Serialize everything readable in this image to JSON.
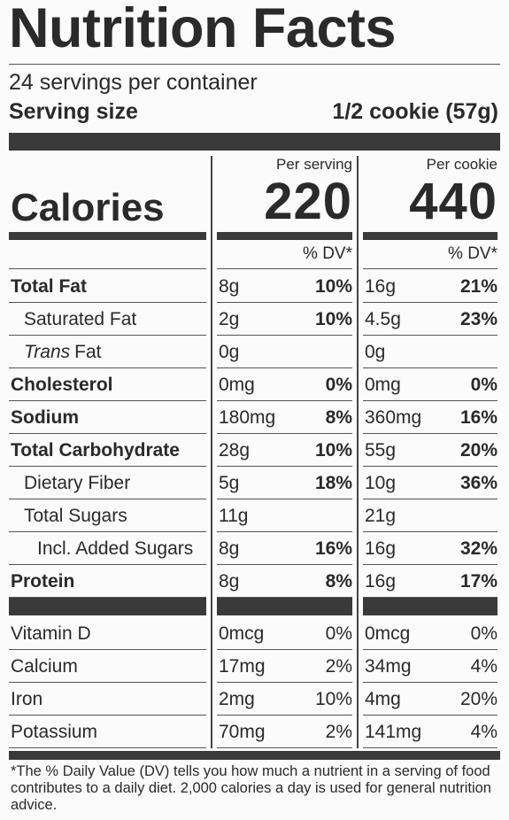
{
  "title": "Nutrition Facts",
  "servings": "24 servings per container",
  "serving_size": {
    "label": "Serving size",
    "value": "1/2 cookie (57g)"
  },
  "calories": {
    "label": "Calories",
    "columns": [
      {
        "header": "Per serving",
        "value": "220"
      },
      {
        "header": "Per cookie",
        "value": "440"
      }
    ]
  },
  "dv_header": [
    "% DV*",
    "% DV*"
  ],
  "nutrients": [
    {
      "name": "Total Fat",
      "bold": true,
      "indent": 0,
      "serving": {
        "amount": "8g",
        "dv": "10%"
      },
      "cookie": {
        "amount": "16g",
        "dv": "21%"
      }
    },
    {
      "name": "Saturated Fat",
      "bold": false,
      "indent": 1,
      "serving": {
        "amount": "2g",
        "dv": "10%"
      },
      "cookie": {
        "amount": "4.5g",
        "dv": "23%"
      }
    },
    {
      "name_italic": "Trans",
      "name": "Fat",
      "bold": false,
      "indent": 1,
      "serving": {
        "amount": "0g"
      },
      "cookie": {
        "amount": "0g"
      }
    },
    {
      "name": "Cholesterol",
      "bold": true,
      "indent": 0,
      "serving": {
        "amount": "0mg",
        "dv": "0%"
      },
      "cookie": {
        "amount": "0mg",
        "dv": "0%"
      }
    },
    {
      "name": "Sodium",
      "bold": true,
      "indent": 0,
      "serving": {
        "amount": "180mg",
        "dv": "8%"
      },
      "cookie": {
        "amount": "360mg",
        "dv": "16%"
      }
    },
    {
      "name": "Total Carbohydrate",
      "bold": true,
      "indent": 0,
      "serving": {
        "amount": "28g",
        "dv": "10%"
      },
      "cookie": {
        "amount": "55g",
        "dv": "20%"
      }
    },
    {
      "name": "Dietary Fiber",
      "bold": false,
      "indent": 1,
      "serving": {
        "amount": "5g",
        "dv": "18%"
      },
      "cookie": {
        "amount": "10g",
        "dv": "36%"
      }
    },
    {
      "name": "Total Sugars",
      "bold": false,
      "indent": 1,
      "serving": {
        "amount": "11g"
      },
      "cookie": {
        "amount": "21g"
      }
    },
    {
      "name": "Incl. Added Sugars",
      "bold": false,
      "indent": 2,
      "serving": {
        "amount": "8g",
        "dv": "16%"
      },
      "cookie": {
        "amount": "16g",
        "dv": "32%"
      }
    },
    {
      "name": "Protein",
      "bold": true,
      "indent": 0,
      "serving": {
        "amount": "8g",
        "dv": "8%"
      },
      "cookie": {
        "amount": "16g",
        "dv": "17%"
      }
    }
  ],
  "vitamins": [
    {
      "name": "Vitamin D",
      "serving": {
        "amount": "0mcg",
        "dv": "0%"
      },
      "cookie": {
        "amount": "0mcg",
        "dv": "0%"
      }
    },
    {
      "name": "Calcium",
      "serving": {
        "amount": "17mg",
        "dv": "2%"
      },
      "cookie": {
        "amount": "34mg",
        "dv": "4%"
      }
    },
    {
      "name": "Iron",
      "serving": {
        "amount": "2mg",
        "dv": "10%"
      },
      "cookie": {
        "amount": "4mg",
        "dv": "20%"
      }
    },
    {
      "name": "Potassium",
      "serving": {
        "amount": "70mg",
        "dv": "2%"
      },
      "cookie": {
        "amount": "141mg",
        "dv": "4%"
      }
    }
  ],
  "footnote": "*The % Daily Value (DV) tells you how much a nutrient in a serving of food contributes to a daily diet. 2,000 calories a day is used for general nutrition advice."
}
